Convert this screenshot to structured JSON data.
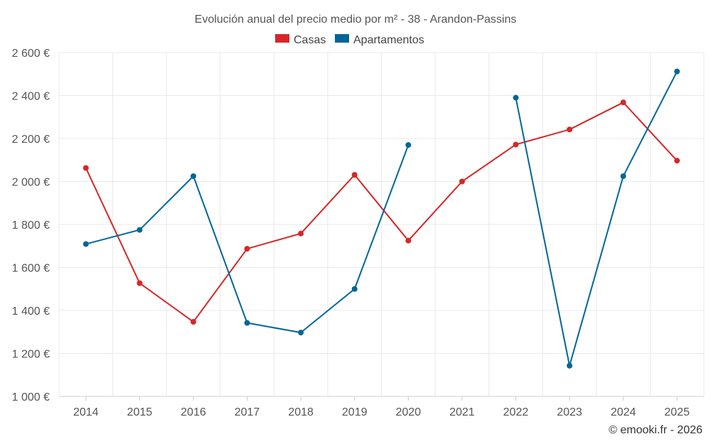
{
  "chart_data": {
    "type": "line",
    "title": "Evolución anual del precio medio por m² - 38 - Arandon-Passins",
    "categories": [
      "2014",
      "2015",
      "2016",
      "2017",
      "2018",
      "2019",
      "2020",
      "2021",
      "2022",
      "2023",
      "2024",
      "2025"
    ],
    "ylim": [
      1000,
      2600
    ],
    "yticks": [
      1000,
      1200,
      1400,
      1600,
      1800,
      2000,
      2200,
      2400,
      2600
    ],
    "ytick_labels": [
      "1 000 €",
      "1 200 €",
      "1 400 €",
      "1 600 €",
      "1 800 €",
      "2 000 €",
      "2 200 €",
      "2 400 €",
      "2 600 €"
    ],
    "grid": true,
    "legend_position": "top-center",
    "series": [
      {
        "name": "Casas",
        "color": "#d62728",
        "values": [
          2063,
          1527,
          1347,
          1687,
          1758,
          2031,
          1725,
          2000,
          2172,
          2242,
          2368,
          2097
        ]
      },
      {
        "name": "Apartamentos",
        "color": "#006699",
        "values": [
          1709,
          1775,
          2025,
          1342,
          1297,
          1500,
          2170,
          null,
          2390,
          1143,
          2025,
          2512
        ]
      }
    ],
    "credit": "© emooki.fr - 2026"
  }
}
